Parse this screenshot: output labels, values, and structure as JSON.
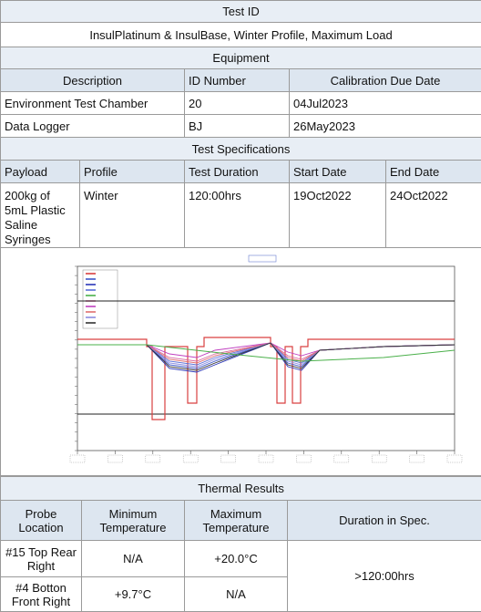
{
  "test_id": {
    "header": "Test ID",
    "value": "InsulPlatinum & InsulBase, Winter Profile, Maximum Load"
  },
  "equipment": {
    "header": "Equipment",
    "columns": [
      "Description",
      "ID Number",
      "Calibration Due Date"
    ],
    "rows": [
      {
        "description": "Environment Test Chamber",
        "id": "20",
        "cal_due": "04Jul2023"
      },
      {
        "description": "Data Logger",
        "id": "BJ",
        "cal_due": "26May2023"
      }
    ]
  },
  "test_specs": {
    "header": "Test Specifications",
    "columns": [
      "Payload",
      "Profile",
      "Test Duration",
      "Start Date",
      "End Date"
    ],
    "row": {
      "payload": "200kg of 5mL Plastic Saline Syringes",
      "profile": "Winter",
      "duration": "120:00hrs",
      "start": "19Oct2022",
      "end": "24Oct2022"
    }
  },
  "chart_data": {
    "type": "line",
    "title": "",
    "xlabel": "",
    "ylabel": "",
    "reference_lines": [
      "upper limit",
      "lower limit"
    ],
    "series_colors": [
      "#d94040",
      "#3b55c9",
      "#2a36b8",
      "#5a6fd8",
      "#4ab04a",
      "#d86aa0",
      "#c040c0",
      "#e07070",
      "#8a8ae0",
      "#333333"
    ],
    "note": ""
  },
  "thermal": {
    "header": "Thermal Results",
    "columns": [
      "Probe Location",
      "Minimum Temperature",
      "Maximum Temperature",
      "Duration in Spec."
    ],
    "rows": [
      {
        "location": "#15 Top Rear Right",
        "min": "N/A",
        "max": "+20.0°C"
      },
      {
        "location": "#4 Botton Front Right",
        "min": "+9.7°C",
        "max": "N/A"
      }
    ],
    "duration": ">120:00hrs"
  }
}
